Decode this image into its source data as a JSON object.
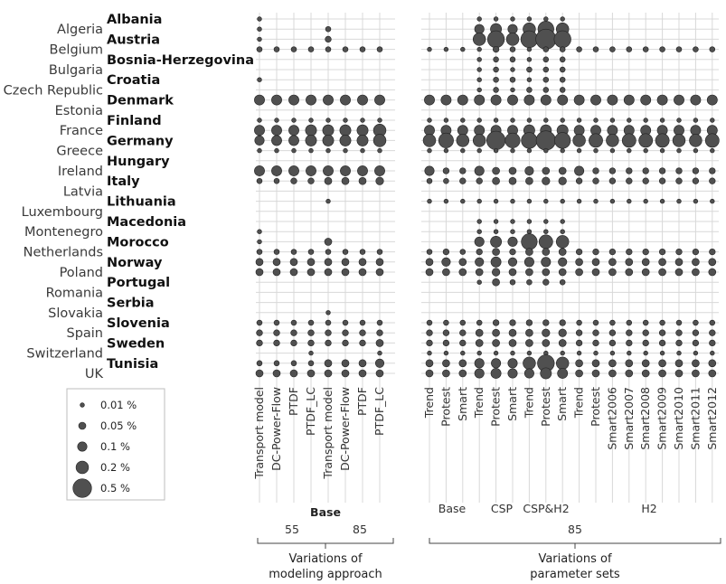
{
  "chart_data": {
    "type": "scatter",
    "subtype": "bubble-matrix",
    "countries": [
      "Albania",
      "Algeria",
      "Austria",
      "Belgium",
      "Bosnia-Herzegovina",
      "Bulgaria",
      "Croatia",
      "Czech Republic",
      "Denmark",
      "Estonia",
      "Finland",
      "France",
      "Germany",
      "Greece",
      "Hungary",
      "Ireland",
      "Italy",
      "Latvia",
      "Lithuania",
      "Luxembourg",
      "Macedonia",
      "Montenegro",
      "Morocco",
      "Netherlands",
      "Norway",
      "Poland",
      "Portugal",
      "Romania",
      "Serbia",
      "Slovakia",
      "Slovenia",
      "Spain",
      "Sweden",
      "Switzerland",
      "Tunisia",
      "UK"
    ],
    "left_panel": {
      "columns": [
        "Transport model",
        "DC-Power-Flow",
        "PTDF",
        "PTDF_LC",
        "Transport model",
        "DC-Power-Flow",
        "PTDF",
        "PTDF_LC"
      ],
      "group_label": "Base",
      "subgroups": [
        {
          "label": "55",
          "columns": [
            0,
            1,
            2,
            3
          ]
        },
        {
          "label": "85",
          "columns": [
            4,
            5,
            6,
            7
          ]
        }
      ],
      "footer": [
        "Variations of",
        "modeling approach"
      ]
    },
    "right_panel": {
      "columns": [
        "Trend",
        "Protest",
        "Smart",
        "Trend",
        "Protest",
        "Smart",
        "Trend",
        "Protest",
        "Smart",
        "Trend",
        "Protest",
        "Smart2006",
        "Smart2007",
        "Smart2008",
        "Smart2009",
        "Smart2010",
        "Smart2011",
        "Smart2012"
      ],
      "groups": [
        {
          "label": "Base",
          "columns": [
            0,
            1,
            2
          ]
        },
        {
          "label": "CSP",
          "columns": [
            3,
            4,
            5
          ]
        },
        {
          "label": "CSP&H2",
          "columns": [
            6,
            7,
            8
          ]
        },
        {
          "label": "H2",
          "columns": [
            9,
            17
          ]
        }
      ],
      "subgroup_label": "85",
      "footer": [
        "Variations of",
        "parameter sets"
      ]
    },
    "legend": [
      {
        "label": "0.01 %",
        "value": 0.01
      },
      {
        "label": "0.05 %",
        "value": 0.05
      },
      {
        "label": "0.1 %",
        "value": 0.1
      },
      {
        "label": "0.2 %",
        "value": 0.2
      },
      {
        "label": "0.5 %",
        "value": 0.5
      }
    ],
    "values_percent": {
      "left": {
        "Albania": [
          0.01,
          0,
          0,
          0,
          0,
          0,
          0,
          0
        ],
        "Algeria": [
          0.01,
          0,
          0,
          0,
          0.02,
          0,
          0,
          0
        ],
        "Austria": [
          0.01,
          0,
          0,
          0,
          0.03,
          0,
          0,
          0
        ],
        "Belgium": [
          0.02,
          0.02,
          0.02,
          0.02,
          0.02,
          0.02,
          0.02,
          0.02
        ],
        "Bosnia-Herzegovina": [
          0,
          0,
          0,
          0,
          0,
          0,
          0,
          0
        ],
        "Bulgaria": [
          0,
          0,
          0,
          0,
          0,
          0,
          0,
          0
        ],
        "Croatia": [
          0.01,
          0,
          0,
          0,
          0,
          0,
          0,
          0
        ],
        "Czech Republic": [
          0,
          0,
          0,
          0,
          0,
          0,
          0,
          0
        ],
        "Denmark": [
          0.12,
          0.12,
          0.12,
          0.12,
          0.12,
          0.12,
          0.12,
          0.12
        ],
        "Estonia": [
          0,
          0,
          0,
          0,
          0,
          0,
          0,
          0
        ],
        "Finland": [
          0.01,
          0.01,
          0.01,
          0.01,
          0.01,
          0.01,
          0.01,
          0.01
        ],
        "France": [
          0.12,
          0.12,
          0.12,
          0.15,
          0.15,
          0.15,
          0.15,
          0.2
        ],
        "Germany": [
          0.1,
          0.12,
          0.12,
          0.15,
          0.15,
          0.15,
          0.15,
          0.2
        ],
        "Greece": [
          0.01,
          0.01,
          0.01,
          0.01,
          0.01,
          0.01,
          0.01,
          0.01
        ],
        "Hungary": [
          0,
          0,
          0,
          0,
          0,
          0,
          0,
          0
        ],
        "Ireland": [
          0.12,
          0.12,
          0.12,
          0.12,
          0.12,
          0.12,
          0.12,
          0.12
        ],
        "Italy": [
          0.02,
          0.02,
          0.03,
          0.03,
          0.05,
          0.05,
          0.05,
          0.06
        ],
        "Latvia": [
          0,
          0,
          0,
          0,
          0,
          0,
          0,
          0
        ],
        "Lithuania": [
          0,
          0,
          0,
          0,
          0.01,
          0,
          0,
          0
        ],
        "Luxembourg": [
          0,
          0,
          0,
          0,
          0,
          0,
          0,
          0
        ],
        "Macedonia": [
          0,
          0,
          0,
          0,
          0,
          0,
          0,
          0
        ],
        "Montenegro": [
          0.01,
          0,
          0,
          0,
          0,
          0,
          0,
          0
        ],
        "Morocco": [
          0.01,
          0,
          0,
          0,
          0.05,
          0,
          0,
          0
        ],
        "Netherlands": [
          0.02,
          0.02,
          0.02,
          0.02,
          0.02,
          0.02,
          0.02,
          0.02
        ],
        "Norway": [
          0.05,
          0.05,
          0.05,
          0.05,
          0.05,
          0.05,
          0.05,
          0.05
        ],
        "Poland": [
          0.05,
          0.05,
          0.05,
          0.05,
          0.05,
          0.05,
          0.05,
          0.05
        ],
        "Portugal": [
          0,
          0,
          0,
          0,
          0,
          0,
          0,
          0
        ],
        "Romania": [
          0,
          0,
          0,
          0,
          0,
          0,
          0,
          0
        ],
        "Serbia": [
          0,
          0,
          0,
          0,
          0,
          0,
          0,
          0
        ],
        "Slovakia": [
          0,
          0,
          0,
          0,
          0.01,
          0,
          0,
          0
        ],
        "Slovenia": [
          0.02,
          0.02,
          0.02,
          0.02,
          0.02,
          0.02,
          0.02,
          0.02
        ],
        "Spain": [
          0.03,
          0.03,
          0.03,
          0.03,
          0.03,
          0.03,
          0.03,
          0.03
        ],
        "Sweden": [
          0.03,
          0.03,
          0.03,
          0.03,
          0.03,
          0.03,
          0.03,
          0.05
        ],
        "Switzerland": [
          0,
          0,
          0,
          0.01,
          0,
          0,
          0,
          0.01
        ],
        "Tunisia": [
          0.02,
          0.02,
          0.02,
          0.02,
          0.05,
          0.05,
          0.05,
          0.08
        ],
        "UK": [
          0.05,
          0.05,
          0.05,
          0.05,
          0.05,
          0.05,
          0.05,
          0.05
        ]
      },
      "right": {
        "Albania": [
          0,
          0,
          0,
          0.01,
          0.01,
          0.01,
          0.01,
          0.01,
          0.01,
          0,
          0,
          0,
          0,
          0,
          0,
          0,
          0,
          0
        ],
        "Algeria": [
          0,
          0,
          0,
          0.1,
          0.15,
          0.1,
          0.2,
          0.35,
          0.2,
          0,
          0,
          0,
          0,
          0,
          0,
          0,
          0,
          0
        ],
        "Austria": [
          0,
          0,
          0,
          0.2,
          0.4,
          0.2,
          0.4,
          0.6,
          0.4,
          0,
          0,
          0,
          0,
          0,
          0,
          0,
          0,
          0
        ],
        "Belgium": [
          0.01,
          0.01,
          0.01,
          0.01,
          0.03,
          0.02,
          0.01,
          0.02,
          0.02,
          0.02,
          0.02,
          0.02,
          0.02,
          0.02,
          0.02,
          0.02,
          0.02,
          0.02
        ],
        "Bosnia-Herzegovina": [
          0,
          0,
          0,
          0.01,
          0.02,
          0.02,
          0.01,
          0.02,
          0.02,
          0,
          0,
          0,
          0,
          0,
          0,
          0,
          0,
          0
        ],
        "Bulgaria": [
          0,
          0,
          0,
          0.01,
          0.02,
          0.01,
          0.02,
          0.02,
          0.02,
          0,
          0,
          0,
          0,
          0,
          0,
          0,
          0,
          0
        ],
        "Croatia": [
          0,
          0,
          0,
          0.01,
          0.02,
          0.02,
          0.01,
          0.02,
          0.02,
          0,
          0,
          0,
          0,
          0,
          0,
          0,
          0,
          0
        ],
        "Czech Republic": [
          0,
          0,
          0,
          0.01,
          0.02,
          0.01,
          0.02,
          0.02,
          0.02,
          0,
          0,
          0,
          0,
          0,
          0,
          0,
          0,
          0
        ],
        "Denmark": [
          0.12,
          0.12,
          0.12,
          0.12,
          0.12,
          0.12,
          0.12,
          0.12,
          0.12,
          0.12,
          0.12,
          0.12,
          0.12,
          0.12,
          0.12,
          0.12,
          0.12,
          0.12
        ],
        "Estonia": [
          0,
          0,
          0,
          0,
          0,
          0,
          0,
          0,
          0,
          0,
          0,
          0,
          0,
          0,
          0,
          0,
          0,
          0
        ],
        "Finland": [
          0.01,
          0.01,
          0.01,
          0.01,
          0.01,
          0.01,
          0.01,
          0.01,
          0.01,
          0.01,
          0.01,
          0.01,
          0.01,
          0.01,
          0.01,
          0.01,
          0.01,
          0.01
        ],
        "France": [
          0.12,
          0.12,
          0.12,
          0.12,
          0.12,
          0.12,
          0.15,
          0.15,
          0.15,
          0.12,
          0.12,
          0.12,
          0.12,
          0.12,
          0.12,
          0.12,
          0.12,
          0.12
        ],
        "Germany": [
          0.2,
          0.3,
          0.2,
          0.2,
          0.5,
          0.3,
          0.35,
          0.55,
          0.35,
          0.2,
          0.25,
          0.2,
          0.25,
          0.25,
          0.25,
          0.2,
          0.2,
          0.25
        ],
        "Greece": [
          0.01,
          0.01,
          0.01,
          0.01,
          0.01,
          0.01,
          0.01,
          0.01,
          0.01,
          0.01,
          0.01,
          0.01,
          0.01,
          0.01,
          0.01,
          0.01,
          0.01,
          0.01
        ],
        "Hungary": [
          0,
          0,
          0,
          0,
          0,
          0,
          0,
          0,
          0,
          0,
          0,
          0,
          0,
          0,
          0,
          0,
          0,
          0
        ],
        "Ireland": [
          0.1,
          0.03,
          0.03,
          0.1,
          0.05,
          0.05,
          0.08,
          0.05,
          0.05,
          0.1,
          0.03,
          0.03,
          0.03,
          0.03,
          0.03,
          0.03,
          0.03,
          0.03
        ],
        "Italy": [
          0.02,
          0.02,
          0.03,
          0.03,
          0.05,
          0.05,
          0.05,
          0.06,
          0.06,
          0.03,
          0.03,
          0.03,
          0.03,
          0.03,
          0.03,
          0.03,
          0.03,
          0.03
        ],
        "Latvia": [
          0,
          0,
          0,
          0,
          0,
          0,
          0,
          0,
          0,
          0,
          0,
          0,
          0,
          0,
          0,
          0,
          0,
          0
        ],
        "Lithuania": [
          0.01,
          0.01,
          0.01,
          0.01,
          0.01,
          0.01,
          0.01,
          0.01,
          0.01,
          0.01,
          0.01,
          0.01,
          0.01,
          0.01,
          0.01,
          0.01,
          0.01,
          0.01
        ],
        "Luxembourg": [
          0,
          0,
          0,
          0,
          0,
          0,
          0,
          0,
          0,
          0,
          0,
          0,
          0,
          0,
          0,
          0,
          0,
          0
        ],
        "Macedonia": [
          0,
          0,
          0,
          0.01,
          0.01,
          0.01,
          0.01,
          0.01,
          0.01,
          0,
          0,
          0,
          0,
          0,
          0,
          0,
          0,
          0
        ],
        "Montenegro": [
          0,
          0,
          0,
          0.01,
          0.01,
          0.01,
          0.01,
          0.01,
          0.01,
          0,
          0,
          0,
          0,
          0,
          0,
          0,
          0,
          0
        ],
        "Morocco": [
          0,
          0,
          0,
          0.1,
          0.15,
          0.1,
          0.35,
          0.25,
          0.2,
          0,
          0,
          0,
          0,
          0,
          0,
          0,
          0,
          0
        ],
        "Netherlands": [
          0.02,
          0.03,
          0.02,
          0.03,
          0.05,
          0.03,
          0.05,
          0.05,
          0.05,
          0.03,
          0.03,
          0.03,
          0.03,
          0.03,
          0.03,
          0.03,
          0.03,
          0.03
        ],
        "Norway": [
          0.05,
          0.08,
          0.05,
          0.08,
          0.12,
          0.08,
          0.1,
          0.1,
          0.08,
          0.05,
          0.05,
          0.05,
          0.05,
          0.05,
          0.05,
          0.05,
          0.05,
          0.05
        ],
        "Poland": [
          0.05,
          0.05,
          0.05,
          0.05,
          0.06,
          0.05,
          0.05,
          0.05,
          0.05,
          0.05,
          0.05,
          0.05,
          0.05,
          0.05,
          0.05,
          0.05,
          0.05,
          0.05
        ],
        "Portugal": [
          0,
          0,
          0,
          0.01,
          0.05,
          0.02,
          0.02,
          0.03,
          0.02,
          0,
          0,
          0,
          0,
          0,
          0,
          0,
          0,
          0
        ],
        "Romania": [
          0,
          0,
          0,
          0,
          0,
          0,
          0,
          0,
          0,
          0,
          0,
          0,
          0,
          0,
          0,
          0,
          0,
          0
        ],
        "Serbia": [
          0,
          0,
          0,
          0,
          0,
          0,
          0,
          0,
          0,
          0,
          0,
          0,
          0,
          0,
          0,
          0,
          0,
          0
        ],
        "Slovakia": [
          0,
          0,
          0,
          0,
          0,
          0,
          0,
          0,
          0,
          0,
          0,
          0,
          0,
          0,
          0,
          0,
          0,
          0
        ],
        "Slovenia": [
          0.02,
          0.02,
          0.02,
          0.02,
          0.03,
          0.03,
          0.03,
          0.03,
          0.03,
          0.02,
          0.02,
          0.02,
          0.02,
          0.02,
          0.02,
          0.02,
          0.02,
          0.02
        ],
        "Spain": [
          0.03,
          0.03,
          0.03,
          0.05,
          0.05,
          0.05,
          0.05,
          0.06,
          0.06,
          0.03,
          0.03,
          0.03,
          0.03,
          0.03,
          0.03,
          0.03,
          0.03,
          0.03
        ],
        "Sweden": [
          0.03,
          0.03,
          0.03,
          0.05,
          0.05,
          0.05,
          0.05,
          0.05,
          0.05,
          0.03,
          0.03,
          0.03,
          0.03,
          0.03,
          0.03,
          0.03,
          0.03,
          0.03
        ],
        "Switzerland": [
          0.01,
          0.01,
          0.01,
          0.01,
          0.01,
          0.01,
          0.01,
          0.01,
          0.01,
          0.01,
          0.01,
          0.01,
          0.01,
          0.01,
          0.01,
          0.01,
          0.01,
          0.01
        ],
        "Tunisia": [
          0.05,
          0.05,
          0.05,
          0.1,
          0.1,
          0.1,
          0.2,
          0.4,
          0.2,
          0.05,
          0.05,
          0.05,
          0.05,
          0.05,
          0.05,
          0.05,
          0.05,
          0.05
        ],
        "UK": [
          0.05,
          0.05,
          0.05,
          0.1,
          0.12,
          0.1,
          0.1,
          0.15,
          0.12,
          0.05,
          0.05,
          0.05,
          0.05,
          0.05,
          0.05,
          0.05,
          0.05,
          0.05
        ]
      }
    }
  },
  "colors": {
    "dot_fill": "#505050",
    "dot_stroke": "#222222",
    "grid": "#d8d8d8",
    "text": "#222222"
  }
}
